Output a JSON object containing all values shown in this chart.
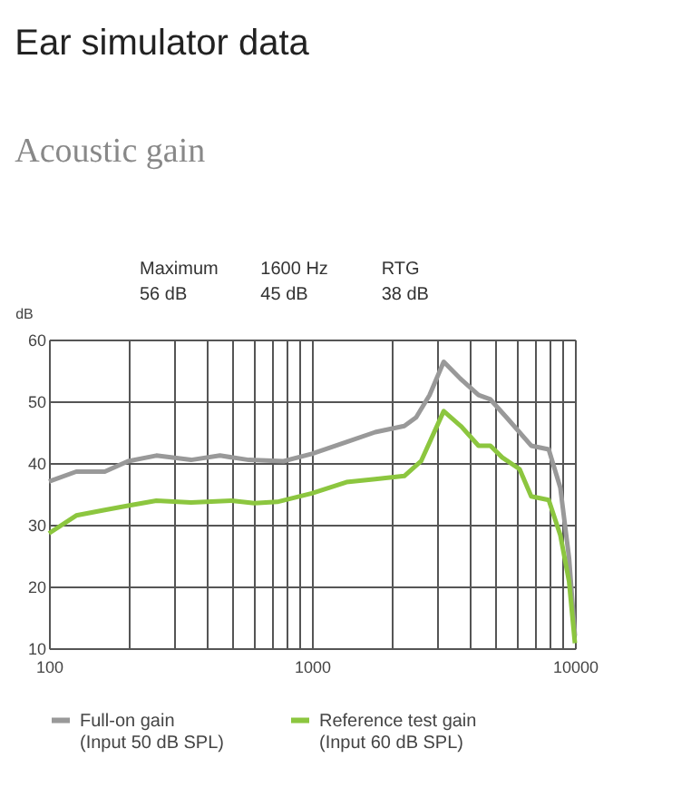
{
  "chart_data": {
    "type": "line",
    "title": "Ear simulator data",
    "subtitle": "Acoustic gain",
    "annotations": [
      "Maximum\n56 dB",
      "1600 Hz\n45 dB",
      "RTG\n38 dB"
    ],
    "ylabel": "dB",
    "log": "x",
    "grid": true,
    "legend": "bottom",
    "xlim": [
      100,
      10000
    ],
    "ylim": [
      10,
      60
    ],
    "xticks": [
      100,
      {
        "value": 200,
        "label": null
      },
      {
        "value": 300,
        "label": null
      },
      {
        "value": 400,
        "label": null
      },
      {
        "value": 500,
        "label": null
      },
      {
        "value": 600,
        "label": null
      },
      {
        "value": 700,
        "label": null
      },
      {
        "value": 800,
        "label": null
      },
      {
        "value": 900,
        "label": null
      },
      1000,
      {
        "value": 2000,
        "label": null
      },
      {
        "value": 3000,
        "label": null
      },
      {
        "value": 4000,
        "label": null
      },
      {
        "value": 5000,
        "label": null
      },
      {
        "value": 6000,
        "label": null
      },
      {
        "value": 7000,
        "label": null
      },
      {
        "value": 8000,
        "label": null
      },
      {
        "value": 9000,
        "label": null
      },
      10000
    ],
    "yticks": [
      10,
      20,
      30,
      40,
      50,
      60
    ],
    "series": [
      {
        "name": "Full-on gain\n(Input 50 dB SPL)",
        "color": "#999999",
        "x": [
          100,
          127,
          163,
          200,
          256,
          347,
          447,
          575,
          780,
          1000,
          1353,
          1740,
          2245,
          2490,
          2800,
          3170,
          3700,
          4300,
          4770,
          5540,
          6820,
          7950,
          8800,
          9500,
          10000
        ],
        "values": [
          37,
          38.6,
          38.6,
          40.3,
          41.2,
          40.5,
          41.2,
          40.5,
          40.3,
          41.5,
          43.4,
          45,
          46,
          47.4,
          51,
          56.4,
          53.5,
          51,
          50.3,
          47.2,
          42.8,
          42.2,
          36,
          24.6,
          12
        ]
      },
      {
        "name": "Reference test gain\n(Input 60 dB SPL)",
        "color": "#8cc63f",
        "x": [
          100,
          127,
          163,
          200,
          256,
          347,
          494,
          604,
          738,
          1000,
          1353,
          1740,
          2245,
          2600,
          3170,
          3700,
          4300,
          4770,
          5290,
          6160,
          6820,
          7950,
          8800,
          9500,
          10000
        ],
        "values": [
          28.6,
          31.5,
          32.4,
          33.1,
          33.9,
          33.6,
          33.9,
          33.5,
          33.7,
          35.1,
          36.9,
          37.4,
          37.9,
          40.3,
          48.4,
          45.9,
          42.8,
          42.8,
          40.9,
          39,
          34.6,
          34,
          28.3,
          20.8,
          10.8
        ]
      }
    ]
  }
}
